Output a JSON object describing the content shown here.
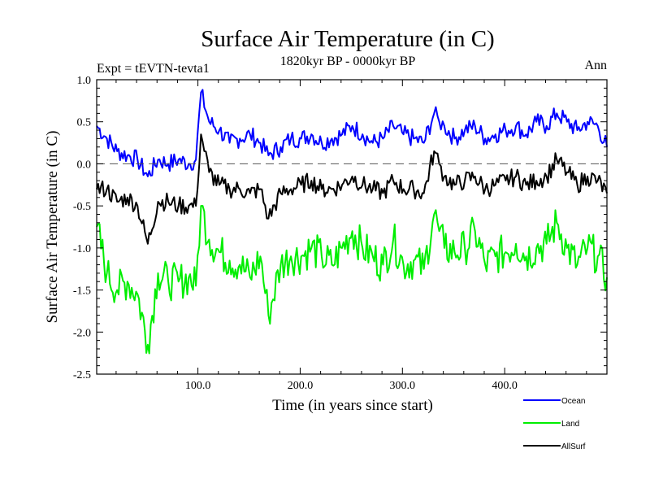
{
  "chart_data": {
    "type": "line",
    "title": "Surface Air Temperature (in C)",
    "subtitle": "1820kyr BP - 0000kyr BP",
    "left_note": "Expt = tEVTN-tevta1",
    "right_note": "Ann",
    "xlabel": "Time (in years since start)",
    "ylabel": "Surface Air Temperature (in C)",
    "xlim": [
      1,
      500
    ],
    "ylim": [
      -2.5,
      1.0
    ],
    "x_ticks": [
      100,
      200,
      300,
      400
    ],
    "x_tick_labels": [
      "100.0",
      "200.0",
      "300.0",
      "400.0"
    ],
    "y_ticks": [
      -2.5,
      -2.0,
      -1.5,
      -1.0,
      -0.5,
      0.0,
      0.5,
      1.0
    ],
    "y_tick_labels": [
      "-2.5",
      "-2.0",
      "-1.5",
      "-1.0",
      "-0.5",
      "0.0",
      "0.5",
      "1.0"
    ],
    "reference_line": {
      "y": 0.0,
      "style": "dashed"
    },
    "legend_position": "bottom-right, outside plot",
    "x": [
      1,
      11,
      21,
      31,
      41,
      51,
      61,
      71,
      81,
      91,
      98,
      103,
      111,
      121,
      131,
      141,
      151,
      161,
      169,
      181,
      191,
      201,
      211,
      221,
      231,
      241,
      251,
      261,
      271,
      281,
      291,
      301,
      311,
      321,
      331,
      336,
      341,
      351,
      361,
      371,
      381,
      391,
      401,
      411,
      421,
      431,
      441,
      451,
      461,
      471,
      481,
      491,
      500
    ],
    "series": [
      {
        "name": "Ocean",
        "color": "#0000ff",
        "values": [
          0.45,
          0.3,
          0.15,
          0.1,
          0.05,
          -0.15,
          0.05,
          0.0,
          0.05,
          0.0,
          0.05,
          0.85,
          0.5,
          0.4,
          0.25,
          0.3,
          0.35,
          0.25,
          0.1,
          0.2,
          0.3,
          0.3,
          0.35,
          0.25,
          0.3,
          0.35,
          0.45,
          0.35,
          0.25,
          0.3,
          0.45,
          0.35,
          0.3,
          0.25,
          0.6,
          0.5,
          0.45,
          0.3,
          0.4,
          0.45,
          0.3,
          0.35,
          0.4,
          0.45,
          0.35,
          0.5,
          0.45,
          0.6,
          0.5,
          0.4,
          0.5,
          0.45,
          0.2
        ]
      },
      {
        "name": "Land",
        "color": "#00ee00",
        "values": [
          -0.75,
          -1.3,
          -1.5,
          -1.4,
          -1.55,
          -2.15,
          -1.3,
          -1.4,
          -1.4,
          -1.35,
          -1.45,
          -0.5,
          -0.9,
          -1.05,
          -1.15,
          -1.2,
          -1.35,
          -1.1,
          -1.8,
          -1.2,
          -1.1,
          -1.1,
          -1.0,
          -1.1,
          -1.2,
          -1.0,
          -0.8,
          -1.0,
          -1.1,
          -1.2,
          -0.9,
          -1.2,
          -1.15,
          -1.25,
          -0.6,
          -0.8,
          -1.0,
          -1.05,
          -1.0,
          -0.8,
          -1.2,
          -1.1,
          -1.05,
          -0.95,
          -1.1,
          -1.0,
          -0.95,
          -0.7,
          -1.0,
          -1.2,
          -1.0,
          -1.1,
          -1.35
        ]
      },
      {
        "name": "AllSurf",
        "color": "#000000",
        "values": [
          -0.3,
          -0.3,
          -0.45,
          -0.4,
          -0.5,
          -0.95,
          -0.45,
          -0.45,
          -0.5,
          -0.5,
          -0.5,
          0.35,
          -0.1,
          -0.25,
          -0.3,
          -0.3,
          -0.35,
          -0.3,
          -0.65,
          -0.35,
          -0.3,
          -0.25,
          -0.2,
          -0.3,
          -0.3,
          -0.25,
          -0.15,
          -0.25,
          -0.3,
          -0.35,
          -0.2,
          -0.3,
          -0.3,
          -0.35,
          0.15,
          0.0,
          -0.15,
          -0.25,
          -0.2,
          -0.15,
          -0.3,
          -0.25,
          -0.2,
          -0.15,
          -0.25,
          -0.2,
          -0.15,
          0.05,
          -0.1,
          -0.25,
          -0.15,
          -0.2,
          -0.35
        ]
      }
    ]
  }
}
